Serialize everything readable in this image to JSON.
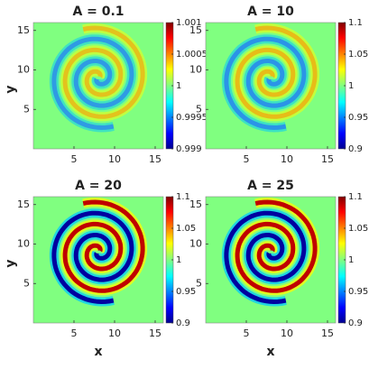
{
  "chart_data": [
    {
      "type": "heatmap",
      "title": "A = 0.1",
      "ylabel": "y",
      "colormap": "jet",
      "xlim": [
        0,
        16
      ],
      "ylim": [
        0,
        16
      ],
      "xticks": [
        5,
        10,
        15
      ],
      "yticks": [
        5,
        10,
        15
      ],
      "clim": [
        0.999,
        1.001
      ],
      "cticks": [
        0.999,
        0.9995,
        1,
        1.0005,
        1.001
      ]
    },
    {
      "type": "heatmap",
      "title": "A = 10",
      "colormap": "jet",
      "xlim": [
        0,
        16
      ],
      "ylim": [
        0,
        16
      ],
      "xticks": [
        5,
        10,
        15
      ],
      "yticks": [
        5,
        10,
        15
      ],
      "clim": [
        0.9,
        1.1
      ],
      "cticks": [
        0.9,
        0.95,
        1,
        1.05,
        1.1
      ]
    },
    {
      "type": "heatmap",
      "title": "A = 20",
      "xlabel": "x",
      "ylabel": "y",
      "colormap": "jet",
      "xlim": [
        0,
        16
      ],
      "ylim": [
        0,
        16
      ],
      "xticks": [
        5,
        10,
        15
      ],
      "yticks": [
        5,
        10,
        15
      ],
      "clim": [
        0.9,
        1.1
      ],
      "cticks": [
        0.9,
        0.95,
        1,
        1.05,
        1.1
      ]
    },
    {
      "type": "heatmap",
      "title": "A = 25",
      "xlabel": "x",
      "colormap": "jet",
      "xlim": [
        0,
        16
      ],
      "ylim": [
        0,
        16
      ],
      "xticks": [
        5,
        10,
        15
      ],
      "yticks": [
        5,
        10,
        15
      ],
      "clim": [
        0.9,
        1.1
      ],
      "cticks": [
        0.9,
        0.95,
        1,
        1.05,
        1.1
      ]
    }
  ]
}
